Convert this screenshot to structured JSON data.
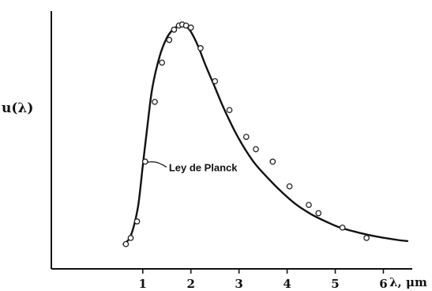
{
  "chart_data": {
    "type": "scatter",
    "title": "",
    "xlabel": "λ, μm",
    "ylabel": "u(λ)",
    "xlim": [
      -0.9,
      6.6
    ],
    "ylim": [
      -0.1,
      1.15
    ],
    "xticks": [
      1,
      2,
      3,
      4,
      5,
      6
    ],
    "grid": false,
    "series": [
      {
        "name": "Ley de Planck",
        "kind": "line",
        "x": [
          0.6,
          0.75,
          0.9,
          1.0,
          1.1,
          1.2,
          1.35,
          1.5,
          1.65,
          1.8,
          1.9,
          2.0,
          2.15,
          2.3,
          2.5,
          2.7,
          3.0,
          3.3,
          3.6,
          3.9,
          4.2,
          4.5,
          4.8,
          5.1,
          5.5,
          5.9,
          6.3,
          6.5
        ],
        "y": [
          0.02,
          0.06,
          0.2,
          0.4,
          0.6,
          0.78,
          0.93,
          1.02,
          1.065,
          1.08,
          1.075,
          1.05,
          0.98,
          0.89,
          0.78,
          0.67,
          0.53,
          0.42,
          0.34,
          0.27,
          0.21,
          0.165,
          0.13,
          0.1,
          0.075,
          0.055,
          0.04,
          0.035
        ]
      },
      {
        "name": "",
        "kind": "points",
        "x": [
          0.65,
          0.75,
          0.88,
          1.05,
          1.25,
          1.4,
          1.55,
          1.65,
          1.75,
          1.82,
          1.9,
          2.0,
          2.2,
          2.5,
          2.8,
          3.15,
          3.35,
          3.7,
          4.05,
          4.45,
          4.65,
          5.15,
          5.65
        ],
        "y": [
          0.02,
          0.05,
          0.13,
          0.42,
          0.71,
          0.9,
          1.01,
          1.06,
          1.08,
          1.085,
          1.08,
          1.07,
          0.97,
          0.81,
          0.67,
          0.54,
          0.48,
          0.42,
          0.3,
          0.21,
          0.17,
          0.1,
          0.05
        ]
      }
    ],
    "annotations": [
      {
        "text": "Ley de Planck",
        "x": 1.05,
        "y": 0.42
      }
    ]
  }
}
